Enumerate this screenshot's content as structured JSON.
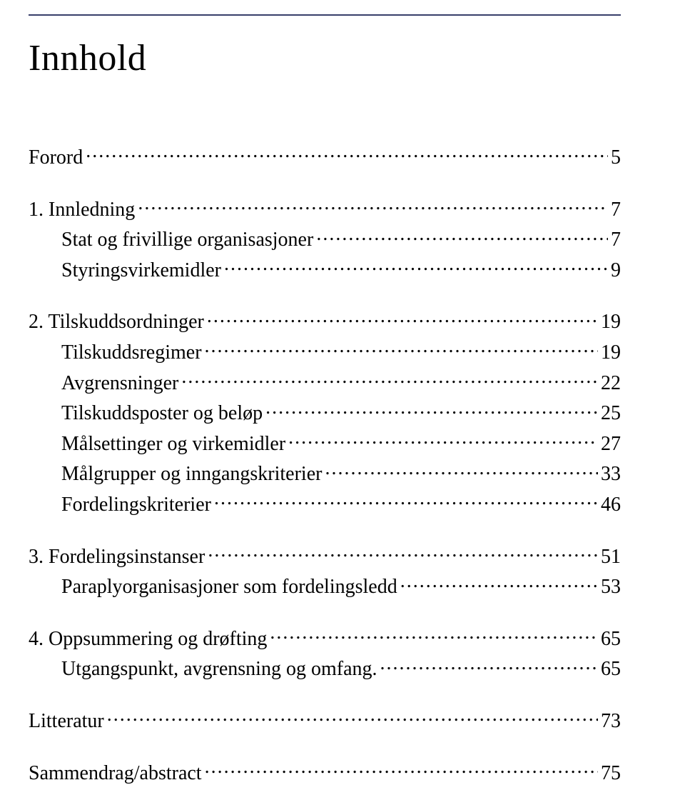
{
  "title": "Innhold",
  "colors": {
    "rule": "#383e6a",
    "text": "#000000",
    "bg": "#ffffff"
  },
  "typography": {
    "title_fontsize": 52,
    "entry_fontsize": 28,
    "font_family": "Times New Roman"
  },
  "toc": {
    "forord": {
      "label": "Forord",
      "page": "5"
    },
    "s1": {
      "label": "1. Innledning",
      "page": "7"
    },
    "s1_1": {
      "label": "Stat og frivillige organisasjoner",
      "page": "7"
    },
    "s1_2": {
      "label": "Styringsvirkemidler",
      "page": "9"
    },
    "s2": {
      "label": "2. Tilskuddsordninger",
      "page": "19"
    },
    "s2_1": {
      "label": "Tilskuddsregimer",
      "page": "19"
    },
    "s2_2": {
      "label": "Avgrensninger",
      "page": "22"
    },
    "s2_3": {
      "label": "Tilskuddsposter og beløp",
      "page": "25"
    },
    "s2_4": {
      "label": "Målsettinger og virkemidler",
      "page": "27"
    },
    "s2_5": {
      "label": "Målgrupper og inngangskriterier",
      "page": "33"
    },
    "s2_6": {
      "label": "Fordelingskriterier",
      "page": "46"
    },
    "s3": {
      "label": "3. Fordelingsinstanser",
      "page": "51"
    },
    "s3_1": {
      "label": "Paraplyorganisasjoner som fordelingsledd",
      "page": "53"
    },
    "s4": {
      "label": "4. Oppsummering og drøfting",
      "page": "65"
    },
    "s4_1": {
      "label": "Utgangspunkt, avgrensning og omfang.",
      "page": "65"
    },
    "litteratur": {
      "label": "Litteratur",
      "page": "73"
    },
    "sammendrag": {
      "label": "Sammendrag/abstract",
      "page": "75"
    }
  }
}
